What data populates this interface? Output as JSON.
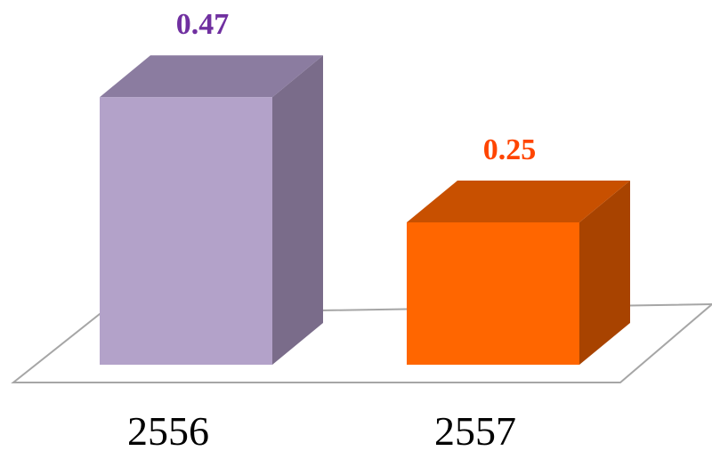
{
  "chart_data": {
    "type": "bar",
    "categories": [
      "2556",
      "2557"
    ],
    "values": [
      0.47,
      0.25
    ],
    "data_labels": [
      "0.47",
      "0.25"
    ],
    "title": "",
    "xlabel": "",
    "ylabel": "",
    "ylim": [
      0,
      0.5
    ],
    "grid": false,
    "legend": "none",
    "style": "3d-column",
    "colors": {
      "bar_front": [
        "#b3a2c9",
        "#ff6600"
      ],
      "bar_side": [
        "#7a6c8a",
        "#a84300"
      ],
      "bar_top": [
        "#8b7ca0",
        "#c85000"
      ],
      "label": [
        "#7030a0",
        "#ff4500"
      ],
      "floor": "#ffffff",
      "floor_edge": "#a6a6a6"
    }
  }
}
